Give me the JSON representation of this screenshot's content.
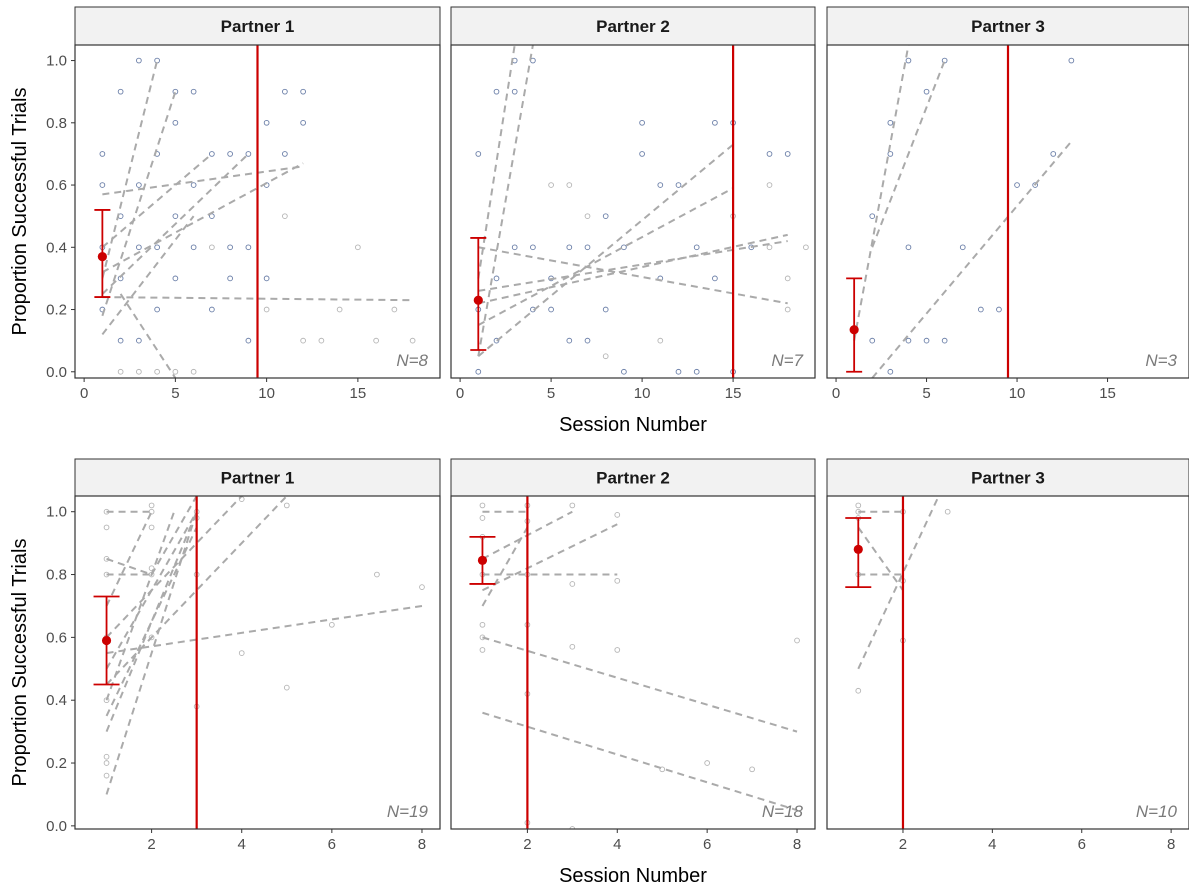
{
  "colors": {
    "mean_point": "#cc0000",
    "error_bar": "#cc0000",
    "phase_line": "#cc0000",
    "trend_line": "#aaaaaa",
    "point_blue": "#6b7fa8",
    "point_gray": "#b5b5b5",
    "strip_bg": "#f2f2f2",
    "panel_border": "#333333"
  },
  "chart_data": [
    {
      "type": "scatter",
      "row": 1,
      "xlabel": "Session Number",
      "ylabel": "Proportion Successful Trials",
      "xlim": [
        -0.5,
        19.5
      ],
      "ylim": [
        -0.02,
        1.05
      ],
      "x_ticks": [
        0,
        5,
        10,
        15
      ],
      "y_ticks": [
        0.0,
        0.2,
        0.4,
        0.6,
        0.8,
        1.0
      ],
      "x_tick_labels": [
        "0",
        "5",
        "10",
        "15"
      ],
      "y_tick_labels": [
        "0.0",
        "0.2",
        "0.4",
        "0.6",
        "0.8",
        "1.0"
      ],
      "panels": [
        {
          "title": "Partner 1",
          "n_label": "N=8",
          "mean": {
            "x": 1,
            "y": 0.37,
            "lo": 0.24,
            "hi": 0.52
          },
          "phase_line_x": 9.5,
          "trend_lines": [
            [
              1,
              0.3,
              4,
              1.0
            ],
            [
              1,
              0.18,
              5,
              0.9
            ],
            [
              1,
              0.25,
              9,
              0.7
            ],
            [
              1,
              0.57,
              12,
              0.66
            ],
            [
              1,
              0.32,
              12,
              0.67
            ],
            [
              1,
              0.24,
              18,
              0.23
            ],
            [
              1,
              0.12,
              6,
              0.5
            ],
            [
              2,
              0.25,
              5,
              -0.02
            ],
            [
              1,
              0.4,
              7,
              0.7
            ]
          ],
          "points_blue": [
            [
              1,
              0.7
            ],
            [
              1,
              0.6
            ],
            [
              1,
              0.4
            ],
            [
              1,
              0.2
            ],
            [
              2,
              0.9
            ],
            [
              2,
              0.5
            ],
            [
              2,
              0.3
            ],
            [
              2,
              0.1
            ],
            [
              3,
              1.0
            ],
            [
              3,
              0.6
            ],
            [
              3,
              0.4
            ],
            [
              3,
              0.1
            ],
            [
              4,
              1.0
            ],
            [
              4,
              0.7
            ],
            [
              4,
              0.4
            ],
            [
              4,
              0.2
            ],
            [
              5,
              0.9
            ],
            [
              5,
              0.8
            ],
            [
              5,
              0.5
            ],
            [
              5,
              0.3
            ],
            [
              6,
              0.9
            ],
            [
              6,
              0.6
            ],
            [
              6,
              0.4
            ],
            [
              7,
              0.7
            ],
            [
              7,
              0.5
            ],
            [
              7,
              0.2
            ],
            [
              8,
              0.7
            ],
            [
              8,
              0.4
            ],
            [
              8,
              0.3
            ],
            [
              9,
              0.7
            ],
            [
              9,
              0.4
            ],
            [
              9,
              0.1
            ],
            [
              10,
              0.8
            ],
            [
              10,
              0.6
            ],
            [
              10,
              0.3
            ],
            [
              11,
              0.9
            ],
            [
              11,
              0.7
            ],
            [
              12,
              0.9
            ],
            [
              12,
              0.8
            ]
          ],
          "points_gray": [
            [
              2,
              0.0
            ],
            [
              3,
              0.0
            ],
            [
              4,
              0.0
            ],
            [
              5,
              0.0
            ],
            [
              6,
              0.0
            ],
            [
              7,
              0.4
            ],
            [
              10,
              0.2
            ],
            [
              11,
              0.5
            ],
            [
              12,
              0.1
            ],
            [
              13,
              0.1
            ],
            [
              14,
              0.2
            ],
            [
              15,
              0.4
            ],
            [
              16,
              0.1
            ],
            [
              17,
              0.2
            ],
            [
              18,
              0.1
            ]
          ]
        },
        {
          "title": "Partner 2",
          "n_label": "N=7",
          "mean": {
            "x": 1,
            "y": 0.23,
            "lo": 0.07,
            "hi": 0.43
          },
          "phase_line_x": 15,
          "trend_lines": [
            [
              1,
              0.3,
              3,
              1.05
            ],
            [
              1,
              0.05,
              4,
              1.05
            ],
            [
              1,
              0.4,
              18,
              0.22
            ],
            [
              1,
              0.22,
              18,
              0.44
            ],
            [
              1,
              0.26,
              18,
              0.42
            ],
            [
              1,
              0.05,
              15,
              0.73
            ],
            [
              1,
              0.15,
              15,
              0.59
            ]
          ],
          "points_blue": [
            [
              1,
              0.7
            ],
            [
              1,
              0.2
            ],
            [
              1,
              0.0
            ],
            [
              2,
              0.9
            ],
            [
              2,
              0.3
            ],
            [
              2,
              0.1
            ],
            [
              3,
              1.0
            ],
            [
              3,
              0.9
            ],
            [
              3,
              0.4
            ],
            [
              4,
              1.0
            ],
            [
              4,
              0.4
            ],
            [
              4,
              0.2
            ],
            [
              5,
              0.2
            ],
            [
              5,
              0.3
            ],
            [
              6,
              0.4
            ],
            [
              6,
              0.1
            ],
            [
              7,
              0.4
            ],
            [
              7,
              0.1
            ],
            [
              8,
              0.5
            ],
            [
              8,
              0.2
            ],
            [
              9,
              0.4
            ],
            [
              9,
              0.0
            ],
            [
              10,
              0.8
            ],
            [
              10,
              0.7
            ],
            [
              11,
              0.6
            ],
            [
              11,
              0.3
            ],
            [
              12,
              0.6
            ],
            [
              12,
              0.0
            ],
            [
              13,
              0.4
            ],
            [
              13,
              0.0
            ],
            [
              14,
              0.8
            ],
            [
              14,
              0.3
            ],
            [
              15,
              0.8
            ],
            [
              15,
              0.0
            ],
            [
              16,
              0.4
            ],
            [
              17,
              0.7
            ],
            [
              18,
              0.7
            ]
          ],
          "points_gray": [
            [
              5,
              0.6
            ],
            [
              6,
              0.6
            ],
            [
              7,
              0.5
            ],
            [
              8,
              0.05
            ],
            [
              11,
              0.1
            ],
            [
              15,
              0.5
            ],
            [
              17,
              0.6
            ],
            [
              17,
              0.4
            ],
            [
              18,
              0.3
            ],
            [
              18,
              0.2
            ],
            [
              19,
              0.4
            ]
          ]
        },
        {
          "title": "Partner 3",
          "n_label": "N=3",
          "mean": {
            "x": 1,
            "y": 0.135,
            "lo": 0.0,
            "hi": 0.3
          },
          "phase_line_x": 9.5,
          "trend_lines": [
            [
              1,
              0.1,
              4,
              1.05
            ],
            [
              2,
              0.4,
              6,
              1.0
            ],
            [
              2,
              -0.02,
              13,
              0.74
            ]
          ],
          "points_blue": [
            [
              2,
              0.1
            ],
            [
              2,
              0.5
            ],
            [
              3,
              0.8
            ],
            [
              3,
              0.7
            ],
            [
              3,
              0.0
            ],
            [
              4,
              1.0
            ],
            [
              4,
              0.4
            ],
            [
              4,
              0.1
            ],
            [
              5,
              0.9
            ],
            [
              5,
              0.1
            ],
            [
              6,
              1.0
            ],
            [
              6,
              0.1
            ],
            [
              7,
              0.4
            ],
            [
              8,
              0.2
            ],
            [
              9,
              0.2
            ],
            [
              10,
              0.6
            ],
            [
              11,
              0.6
            ],
            [
              12,
              0.7
            ],
            [
              13,
              1.0
            ]
          ],
          "points_gray": []
        }
      ]
    },
    {
      "type": "scatter",
      "row": 2,
      "xlabel": "Session Number",
      "ylabel": "Proportion Successful Trials",
      "xlim": [
        0.3,
        8.4
      ],
      "ylim": [
        -0.01,
        1.05
      ],
      "x_ticks": [
        2,
        4,
        6,
        8
      ],
      "y_ticks": [
        0.0,
        0.2,
        0.4,
        0.6,
        0.8,
        1.0
      ],
      "x_tick_labels": [
        "2",
        "4",
        "6",
        "8"
      ],
      "y_tick_labels": [
        "0.0",
        "0.2",
        "0.4",
        "0.6",
        "0.8",
        "1.0"
      ],
      "panels": [
        {
          "title": "Partner 1",
          "n_label": "N=19",
          "mean": {
            "x": 1,
            "y": 0.59,
            "lo": 0.45,
            "hi": 0.73
          },
          "phase_line_x": 3,
          "trend_lines": [
            [
              1,
              1.0,
              2,
              1.0
            ],
            [
              1,
              0.8,
              2,
              0.8
            ],
            [
              1,
              0.1,
              3,
              1.0
            ],
            [
              1,
              0.3,
              3,
              1.0
            ],
            [
              1,
              0.4,
              2.5,
              1.0
            ],
            [
              1,
              0.5,
              3,
              1.0
            ],
            [
              1,
              0.55,
              8,
              0.7
            ],
            [
              1,
              0.7,
              2,
              1.0
            ],
            [
              1,
              0.85,
              2,
              0.8
            ],
            [
              1,
              0.6,
              4,
              1.05
            ],
            [
              1,
              0.45,
              5,
              1.05
            ],
            [
              2,
              0.8,
              3,
              1.05
            ],
            [
              1,
              0.35,
              3,
              0.95
            ]
          ],
          "points_blue": [],
          "points_gray": [
            [
              1,
              1.0
            ],
            [
              1,
              0.95
            ],
            [
              1,
              0.85
            ],
            [
              1,
              0.8
            ],
            [
              1,
              0.6
            ],
            [
              1,
              0.4
            ],
            [
              1,
              0.2
            ],
            [
              1,
              0.22
            ],
            [
              1,
              0.16
            ],
            [
              2,
              1.0
            ],
            [
              2,
              1.02
            ],
            [
              2,
              0.95
            ],
            [
              2,
              0.8
            ],
            [
              2,
              0.82
            ],
            [
              2,
              0.6
            ],
            [
              3,
              1.0
            ],
            [
              3,
              0.98
            ],
            [
              3,
              0.8
            ],
            [
              3,
              0.38
            ],
            [
              4,
              1.04
            ],
            [
              4,
              0.55
            ],
            [
              5,
              1.02
            ],
            [
              5,
              0.44
            ],
            [
              6,
              0.64
            ],
            [
              7,
              0.8
            ],
            [
              8,
              0.76
            ]
          ]
        },
        {
          "title": "Partner 2",
          "n_label": "N=18",
          "mean": {
            "x": 1,
            "y": 0.845,
            "lo": 0.77,
            "hi": 0.92
          },
          "phase_line_x": 2,
          "trend_lines": [
            [
              1,
              1.0,
              2,
              1.0
            ],
            [
              1,
              0.8,
              4,
              0.8
            ],
            [
              1,
              0.75,
              4,
              0.96
            ],
            [
              1,
              0.7,
              2,
              0.95
            ],
            [
              1,
              0.6,
              8,
              0.3
            ],
            [
              1,
              0.36,
              8,
              0.05
            ],
            [
              1,
              0.85,
              3,
              1.0
            ]
          ],
          "points_blue": [],
          "points_gray": [
            [
              1,
              1.02
            ],
            [
              1,
              0.98
            ],
            [
              1,
              0.92
            ],
            [
              1,
              0.85
            ],
            [
              1,
              0.8
            ],
            [
              1,
              0.64
            ],
            [
              1,
              0.6
            ],
            [
              1,
              0.56
            ],
            [
              2,
              1.02
            ],
            [
              2,
              0.97
            ],
            [
              2,
              0.8
            ],
            [
              2,
              0.64
            ],
            [
              2,
              0.42
            ],
            [
              2,
              0.01
            ],
            [
              3,
              1.02
            ],
            [
              3,
              0.77
            ],
            [
              3,
              0.57
            ],
            [
              3,
              -0.01
            ],
            [
              4,
              0.99
            ],
            [
              4,
              0.78
            ],
            [
              4,
              0.56
            ],
            [
              5,
              0.18
            ],
            [
              6,
              0.2
            ],
            [
              7,
              0.18
            ],
            [
              8,
              0.59
            ]
          ]
        },
        {
          "title": "Partner 3",
          "n_label": "N=10",
          "mean": {
            "x": 1,
            "y": 0.88,
            "lo": 0.76,
            "hi": 0.98
          },
          "phase_line_x": 2,
          "trend_lines": [
            [
              1,
              1.0,
              2,
              1.0
            ],
            [
              1,
              0.8,
              2,
              0.8
            ],
            [
              1,
              0.5,
              2.8,
              1.05
            ],
            [
              1,
              0.95,
              2,
              0.75
            ]
          ],
          "points_blue": [],
          "points_gray": [
            [
              1,
              1.02
            ],
            [
              1,
              1.0
            ],
            [
              1,
              0.98
            ],
            [
              1,
              0.8
            ],
            [
              1,
              0.43
            ],
            [
              2,
              1.0
            ],
            [
              2,
              0.78
            ],
            [
              2,
              0.59
            ],
            [
              3,
              1.0
            ]
          ]
        }
      ]
    }
  ]
}
